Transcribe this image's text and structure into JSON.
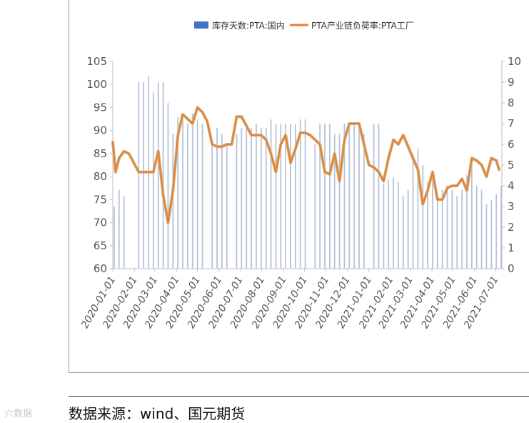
{
  "chart_data": {
    "type": "bar+line",
    "x_axis": {
      "type": "date",
      "tick_labels": [
        "2020-01-01",
        "2020-02-01",
        "2020-03-01",
        "2020-04-01",
        "2020-05-01",
        "2020-06-01",
        "2020-07-01",
        "2020-08-01",
        "2020-09-01",
        "2020-10-01",
        "2020-11-01",
        "2020-12-01",
        "2021-01-01",
        "2021-02-01",
        "2021-03-01",
        "2021-04-01",
        "2021-05-01",
        "2021-06-01",
        "2021-07-01"
      ]
    },
    "y_left": {
      "min": 60,
      "max": 105,
      "ticks": [
        60,
        65,
        70,
        75,
        80,
        85,
        90,
        95,
        100,
        105
      ]
    },
    "y_right": {
      "min": 0,
      "max": 10,
      "ticks": [
        0,
        1,
        2,
        3,
        4,
        5,
        6,
        7,
        8,
        9,
        10
      ]
    },
    "legend": {
      "position": "top",
      "entries": [
        "库存天数:PTA:国内",
        "PTA产业链负荷率:PTA工厂"
      ]
    },
    "colors": {
      "bar": "#4472c4",
      "line": "#ed7d31",
      "line_outline": "#c9b27a"
    },
    "series": [
      {
        "name": "库存天数:PTA:国内",
        "axis": "right",
        "kind": "bar",
        "points": [
          [
            "2020-01-03",
            3.0
          ],
          [
            "2020-01-10",
            3.8
          ],
          [
            "2020-01-17",
            3.5
          ],
          [
            "2020-02-07",
            9.0
          ],
          [
            "2020-02-14",
            9.0
          ],
          [
            "2020-02-21",
            9.3
          ],
          [
            "2020-02-28",
            8.5
          ],
          [
            "2020-03-06",
            9.0
          ],
          [
            "2020-03-13",
            9.0
          ],
          [
            "2020-03-20",
            8.0
          ],
          [
            "2020-03-27",
            6.5
          ],
          [
            "2020-04-03",
            7.3
          ],
          [
            "2020-04-10",
            7.2
          ],
          [
            "2020-04-17",
            7.0
          ],
          [
            "2020-04-24",
            7.5
          ],
          [
            "2020-05-01",
            7.2
          ],
          [
            "2020-05-08",
            7.0
          ],
          [
            "2020-05-22",
            6.2
          ],
          [
            "2020-05-29",
            6.8
          ],
          [
            "2020-06-05",
            6.5
          ],
          [
            "2020-06-12",
            6.0
          ],
          [
            "2020-06-26",
            6.5
          ],
          [
            "2020-07-03",
            6.8
          ],
          [
            "2020-07-10",
            6.8
          ],
          [
            "2020-07-17",
            6.8
          ],
          [
            "2020-07-24",
            7.0
          ],
          [
            "2020-07-31",
            6.8
          ],
          [
            "2020-08-07",
            6.8
          ],
          [
            "2020-08-14",
            7.2
          ],
          [
            "2020-08-21",
            7.0
          ],
          [
            "2020-08-28",
            7.0
          ],
          [
            "2020-09-04",
            7.0
          ],
          [
            "2020-09-11",
            7.0
          ],
          [
            "2020-09-18",
            7.0
          ],
          [
            "2020-09-25",
            7.2
          ],
          [
            "2020-10-02",
            7.2
          ],
          [
            "2020-10-16",
            6.0
          ],
          [
            "2020-10-23",
            7.0
          ],
          [
            "2020-10-30",
            7.0
          ],
          [
            "2020-11-06",
            7.0
          ],
          [
            "2020-11-13",
            6.5
          ],
          [
            "2020-11-20",
            6.5
          ],
          [
            "2020-11-27",
            7.0
          ],
          [
            "2020-12-04",
            7.0
          ],
          [
            "2020-12-11",
            7.0
          ],
          [
            "2020-12-18",
            6.8
          ],
          [
            "2020-12-25",
            6.5
          ],
          [
            "2021-01-08",
            7.0
          ],
          [
            "2021-01-15",
            7.0
          ],
          [
            "2021-01-22",
            4.1
          ],
          [
            "2021-01-29",
            4.3
          ],
          [
            "2021-02-05",
            4.4
          ],
          [
            "2021-02-12",
            4.2
          ],
          [
            "2021-02-19",
            3.5
          ],
          [
            "2021-02-26",
            3.8
          ],
          [
            "2021-03-05",
            5.5
          ],
          [
            "2021-03-12",
            5.8
          ],
          [
            "2021-03-19",
            5.0
          ],
          [
            "2021-03-26",
            4.2
          ],
          [
            "2021-04-02",
            4.3
          ],
          [
            "2021-04-09",
            3.6
          ],
          [
            "2021-04-16",
            3.8
          ],
          [
            "2021-04-23",
            4.0
          ],
          [
            "2021-04-30",
            3.8
          ],
          [
            "2021-05-07",
            3.5
          ],
          [
            "2021-05-14",
            3.8
          ],
          [
            "2021-05-21",
            4.5
          ],
          [
            "2021-05-28",
            5.2
          ],
          [
            "2021-06-04",
            4.0
          ],
          [
            "2021-06-11",
            3.8
          ],
          [
            "2021-06-18",
            3.1
          ],
          [
            "2021-06-25",
            3.3
          ],
          [
            "2021-07-02",
            3.6
          ],
          [
            "2021-07-09",
            4.0
          ]
        ]
      },
      {
        "name": "PTA产业链负荷率:PTA工厂",
        "axis": "left",
        "kind": "line",
        "points": [
          [
            "2020-01-01",
            87.5
          ],
          [
            "2020-01-05",
            81.0
          ],
          [
            "2020-01-10",
            84.0
          ],
          [
            "2020-01-17",
            85.5
          ],
          [
            "2020-01-24",
            85.0
          ],
          [
            "2020-01-31",
            83.0
          ],
          [
            "2020-02-07",
            81.0
          ],
          [
            "2020-02-14",
            81.0
          ],
          [
            "2020-02-21",
            81.0
          ],
          [
            "2020-02-28",
            81.0
          ],
          [
            "2020-03-06",
            85.5
          ],
          [
            "2020-03-13",
            76.0
          ],
          [
            "2020-03-20",
            70.0
          ],
          [
            "2020-03-27",
            77.0
          ],
          [
            "2020-04-03",
            89.0
          ],
          [
            "2020-04-10",
            93.5
          ],
          [
            "2020-04-17",
            92.5
          ],
          [
            "2020-04-24",
            91.5
          ],
          [
            "2020-05-01",
            95.0
          ],
          [
            "2020-05-08",
            94.0
          ],
          [
            "2020-05-15",
            92.0
          ],
          [
            "2020-05-22",
            87.0
          ],
          [
            "2020-05-29",
            86.5
          ],
          [
            "2020-06-05",
            86.5
          ],
          [
            "2020-06-12",
            87.0
          ],
          [
            "2020-06-19",
            87.0
          ],
          [
            "2020-06-26",
            93.0
          ],
          [
            "2020-07-03",
            93.0
          ],
          [
            "2020-07-10",
            91.0
          ],
          [
            "2020-07-17",
            89.0
          ],
          [
            "2020-07-24",
            89.0
          ],
          [
            "2020-07-31",
            89.0
          ],
          [
            "2020-08-07",
            88.0
          ],
          [
            "2020-08-14",
            85.0
          ],
          [
            "2020-08-21",
            81.0
          ],
          [
            "2020-08-28",
            87.0
          ],
          [
            "2020-09-04",
            89.0
          ],
          [
            "2020-09-11",
            83.0
          ],
          [
            "2020-09-18",
            86.0
          ],
          [
            "2020-09-25",
            89.5
          ],
          [
            "2020-10-02",
            89.5
          ],
          [
            "2020-10-09",
            89.0
          ],
          [
            "2020-10-16",
            88.0
          ],
          [
            "2020-10-23",
            87.0
          ],
          [
            "2020-10-30",
            81.0
          ],
          [
            "2020-11-06",
            80.5
          ],
          [
            "2020-11-13",
            85.0
          ],
          [
            "2020-11-20",
            79.0
          ],
          [
            "2020-11-27",
            88.0
          ],
          [
            "2020-12-04",
            91.5
          ],
          [
            "2020-12-11",
            91.5
          ],
          [
            "2020-12-18",
            91.5
          ],
          [
            "2020-12-25",
            87.0
          ],
          [
            "2021-01-01",
            82.5
          ],
          [
            "2021-01-08",
            82.0
          ],
          [
            "2021-01-15",
            81.0
          ],
          [
            "2021-01-22",
            79.0
          ],
          [
            "2021-01-29",
            84.0
          ],
          [
            "2021-02-05",
            88.0
          ],
          [
            "2021-02-12",
            87.0
          ],
          [
            "2021-02-19",
            89.0
          ],
          [
            "2021-02-26",
            86.5
          ],
          [
            "2021-03-05",
            84.0
          ],
          [
            "2021-03-12",
            81.5
          ],
          [
            "2021-03-19",
            74.0
          ],
          [
            "2021-03-26",
            77.0
          ],
          [
            "2021-04-02",
            81.0
          ],
          [
            "2021-04-09",
            75.0
          ],
          [
            "2021-04-16",
            75.0
          ],
          [
            "2021-04-23",
            77.5
          ],
          [
            "2021-04-30",
            78.0
          ],
          [
            "2021-05-07",
            78.0
          ],
          [
            "2021-05-14",
            79.5
          ],
          [
            "2021-05-21",
            77.0
          ],
          [
            "2021-05-28",
            84.0
          ],
          [
            "2021-06-04",
            83.5
          ],
          [
            "2021-06-11",
            82.5
          ],
          [
            "2021-06-18",
            80.0
          ],
          [
            "2021-06-25",
            84.0
          ],
          [
            "2021-07-02",
            83.5
          ],
          [
            "2021-07-06",
            81.5
          ]
        ]
      }
    ]
  },
  "footer": {
    "source_text": "数据来源：wind、国元期货",
    "watermark": "六数据"
  }
}
